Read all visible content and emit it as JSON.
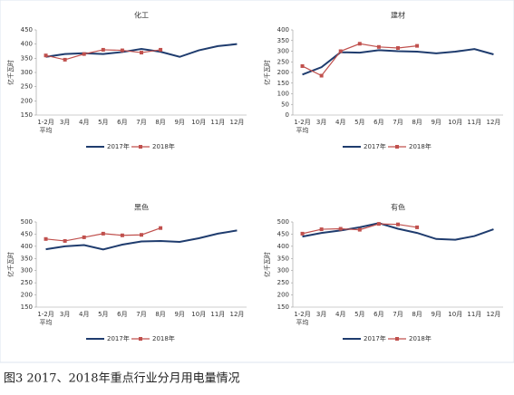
{
  "caption": "图3 2017、2018年重点行业分月用电量情况",
  "chart_data": [
    {
      "type": "line",
      "title": "化工",
      "y_label": "亿千瓦时",
      "legend": "bottom",
      "categories": [
        "1-2月\n平均",
        "3月",
        "4月",
        "5月",
        "6月",
        "7月",
        "8月",
        "9月",
        "10月",
        "11月",
        "12月"
      ],
      "ylim": [
        150,
        450
      ],
      "yticks": [
        150,
        200,
        250,
        300,
        350,
        400,
        450
      ],
      "series": [
        {
          "name": "2017年",
          "color": "#1f3c6e",
          "values": [
            355,
            365,
            368,
            365,
            372,
            383,
            373,
            355,
            378,
            393,
            400
          ]
        },
        {
          "name": "2018年",
          "color": "#c0504d",
          "values": [
            360,
            345,
            365,
            380,
            378,
            370,
            380,
            null,
            null,
            null,
            null
          ]
        }
      ]
    },
    {
      "type": "line",
      "title": "建材",
      "y_label": "亿千瓦时",
      "legend": "bottom",
      "categories": [
        "1-2月\n平均",
        "3月",
        "4月",
        "5月",
        "6月",
        "7月",
        "8月",
        "9月",
        "10月",
        "11月",
        "12月"
      ],
      "ylim": [
        0,
        400
      ],
      "yticks": [
        0,
        50,
        100,
        150,
        200,
        250,
        300,
        350,
        400
      ],
      "series": [
        {
          "name": "2017年",
          "color": "#1f3c6e",
          "values": [
            190,
            225,
            295,
            293,
            305,
            300,
            298,
            290,
            298,
            310,
            285
          ]
        },
        {
          "name": "2018年",
          "color": "#c0504d",
          "values": [
            230,
            185,
            300,
            335,
            320,
            315,
            325,
            null,
            null,
            null,
            null
          ]
        }
      ]
    },
    {
      "type": "line",
      "title": "黑色",
      "y_label": "亿千瓦时",
      "legend": "bottom",
      "categories": [
        "1-2月\n平均",
        "3月",
        "4月",
        "5月",
        "6月",
        "7月",
        "8月",
        "9月",
        "10月",
        "11月",
        "12月"
      ],
      "ylim": [
        150,
        500
      ],
      "yticks": [
        150,
        200,
        250,
        300,
        350,
        400,
        450,
        500
      ],
      "series": [
        {
          "name": "2017年",
          "color": "#1f3c6e",
          "values": [
            388,
            400,
            405,
            387,
            407,
            420,
            422,
            418,
            433,
            452,
            465
          ]
        },
        {
          "name": "2018年",
          "color": "#c0504d",
          "values": [
            430,
            422,
            437,
            452,
            445,
            447,
            475,
            null,
            null,
            null,
            null
          ]
        }
      ]
    },
    {
      "type": "line",
      "title": "有色",
      "y_label": "亿千瓦时",
      "legend": "bottom",
      "categories": [
        "1-2月\n平均",
        "3月",
        "4月",
        "5月",
        "6月",
        "7月",
        "8月",
        "9月",
        "10月",
        "11月",
        "12月"
      ],
      "ylim": [
        150,
        500
      ],
      "yticks": [
        150,
        200,
        250,
        300,
        350,
        400,
        450,
        500
      ],
      "series": [
        {
          "name": "2017年",
          "color": "#1f3c6e",
          "values": [
            440,
            455,
            465,
            478,
            495,
            472,
            455,
            430,
            427,
            442,
            470
          ]
        },
        {
          "name": "2018年",
          "color": "#c0504d",
          "values": [
            452,
            470,
            472,
            468,
            492,
            490,
            478,
            null,
            null,
            null,
            null
          ]
        }
      ]
    }
  ]
}
